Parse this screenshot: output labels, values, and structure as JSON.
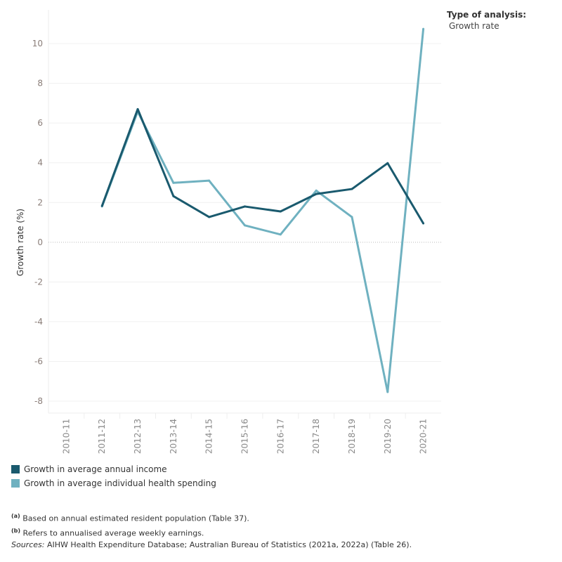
{
  "filter": {
    "title": "Type of analysis:",
    "value": "Growth rate"
  },
  "chart_data": {
    "type": "line",
    "xlabel": "",
    "ylabel": "Growth rate (%)",
    "categories": [
      "2010-11",
      "2011-12",
      "2012-13",
      "2013-14",
      "2014-15",
      "2015-16",
      "2016-17",
      "2017-18",
      "2018-19",
      "2019-20",
      "2020-21"
    ],
    "yticks": [
      -8,
      -6,
      -4,
      -2,
      0,
      2,
      4,
      6,
      8,
      10
    ],
    "ylim": [
      -8.6,
      11.7
    ],
    "grid": true,
    "legend_position": "bottom-left",
    "series": [
      {
        "name": "Growth in average annual income",
        "color": "#1a5a6e",
        "values": [
          null,
          1.83,
          6.7,
          2.32,
          1.27,
          1.8,
          1.55,
          2.43,
          2.68,
          3.98,
          0.95
        ]
      },
      {
        "name": "Growth in average individual health spending",
        "color": "#6fb1c0",
        "values": [
          null,
          1.8,
          6.58,
          2.99,
          3.1,
          0.85,
          0.39,
          2.6,
          1.27,
          -7.54,
          10.74
        ]
      }
    ]
  },
  "notes": {
    "a_marker": "(a)",
    "a": "Based on annual estimated resident population (Table 37).",
    "b_marker": "(b)",
    "b": "Refers to annualised average weekly earnings.",
    "sources_label": "Sources:",
    "sources": "AIHW Health Expenditure Database; Australian Bureau of Statistics (2021a, 2022a) (Table 26)."
  }
}
